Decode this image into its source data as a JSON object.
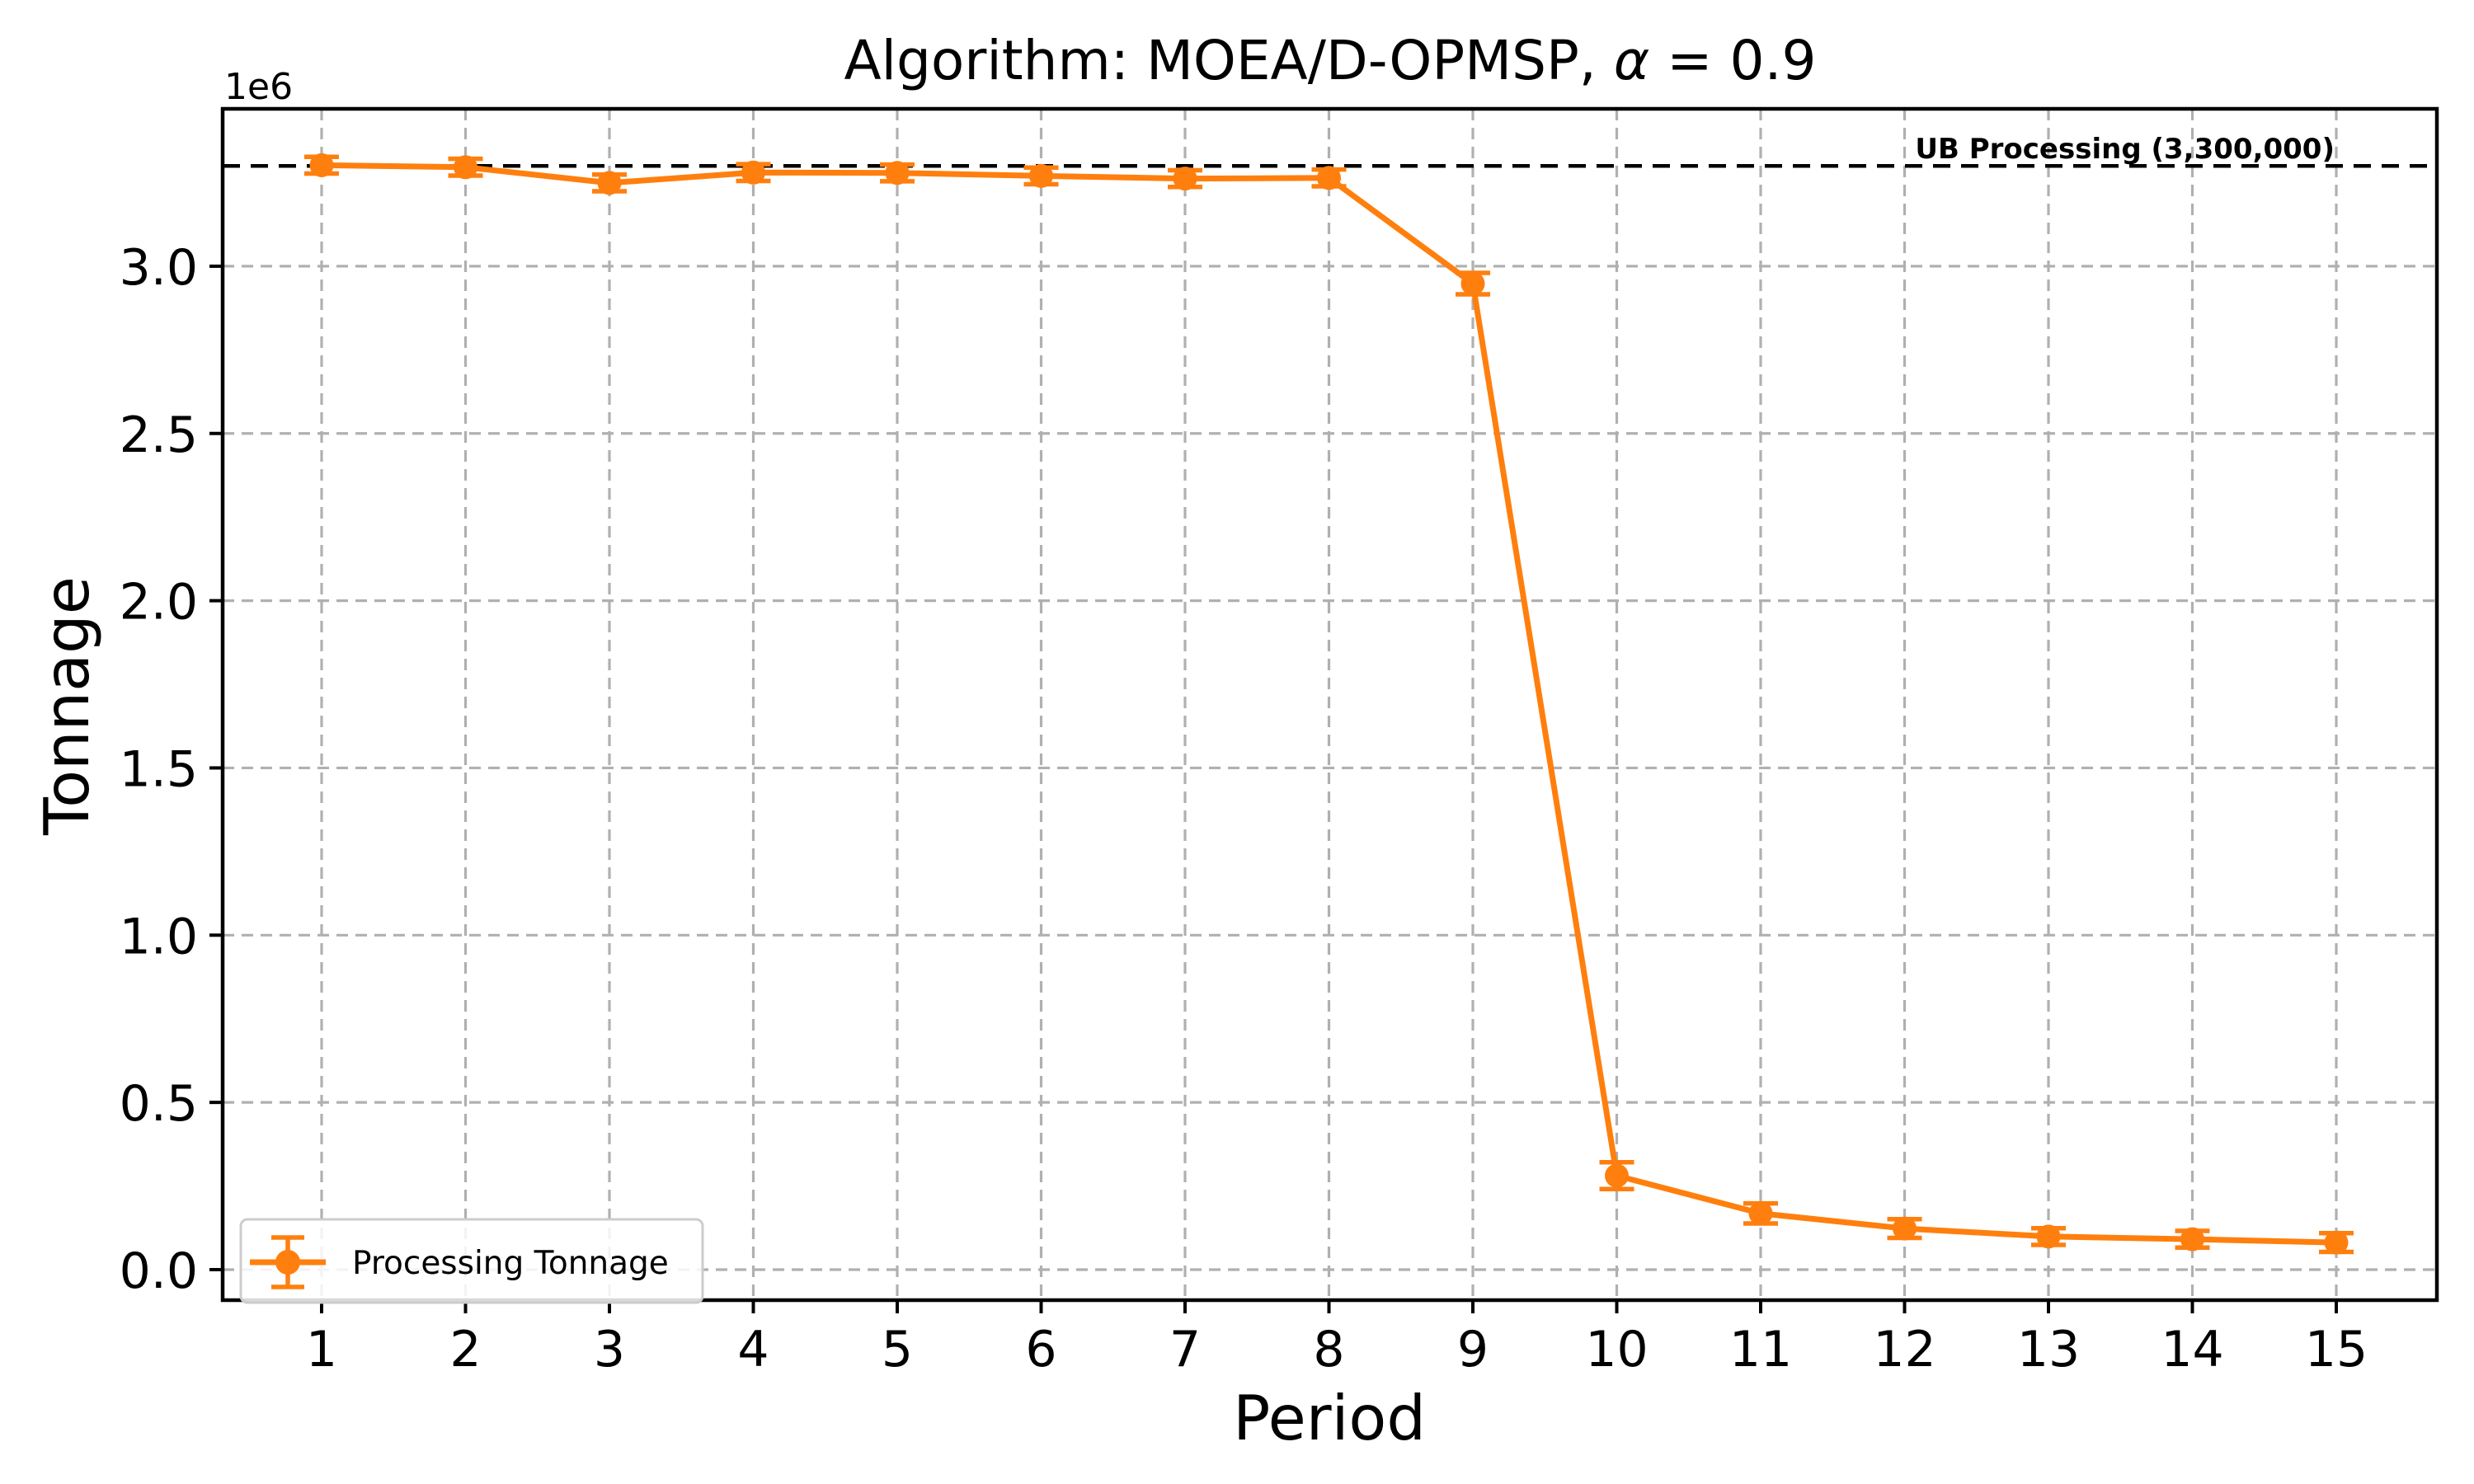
{
  "chart_data": {
    "type": "line",
    "title": "Algorithm: MOEA/D-OPMSP, α = 0.9",
    "title_parts": {
      "prefix": "Algorithm: MOEA/D-OPMSP, ",
      "alpha": "α",
      "suffix": " = 0.9"
    },
    "xlabel": "Period",
    "ylabel": "Tonnage",
    "y_offset_text": "1e6",
    "x": [
      1,
      2,
      3,
      4,
      5,
      6,
      7,
      8,
      9,
      10,
      11,
      12,
      13,
      14,
      15
    ],
    "x_tick_labels": [
      "1",
      "2",
      "3",
      "4",
      "5",
      "6",
      "7",
      "8",
      "9",
      "10",
      "11",
      "12",
      "13",
      "14",
      "15"
    ],
    "y_ticks": [
      0,
      500000,
      1000000,
      1500000,
      2000000,
      2500000,
      3000000
    ],
    "y_tick_labels": [
      "0.0",
      "0.5",
      "1.0",
      "1.5",
      "2.0",
      "2.5",
      "3.0"
    ],
    "ylim": [
      -90000,
      3470000
    ],
    "grid": true,
    "legend": {
      "position": "lower-left",
      "label": "Processing Tonnage"
    },
    "series": [
      {
        "name": "Processing Tonnage",
        "color": "#ff7f0e",
        "marker": "o",
        "values": [
          3302000,
          3296000,
          3249000,
          3280000,
          3279000,
          3270000,
          3262000,
          3264000,
          2948000,
          281000,
          168000,
          123000,
          99000,
          91000,
          81000
        ],
        "errors": [
          25000,
          25000,
          25000,
          25000,
          25000,
          25000,
          25000,
          25000,
          32000,
          40000,
          30000,
          28000,
          25000,
          25000,
          28000
        ]
      }
    ],
    "reference_line": {
      "label": "UB Processing (3,300,000)",
      "value": 3300000,
      "color": "#000000",
      "style": "dashed"
    },
    "colors": {
      "grid": "#b0b0b0",
      "axes": "#000000",
      "background": "#ffffff",
      "legend_border": "#cccccc"
    }
  }
}
